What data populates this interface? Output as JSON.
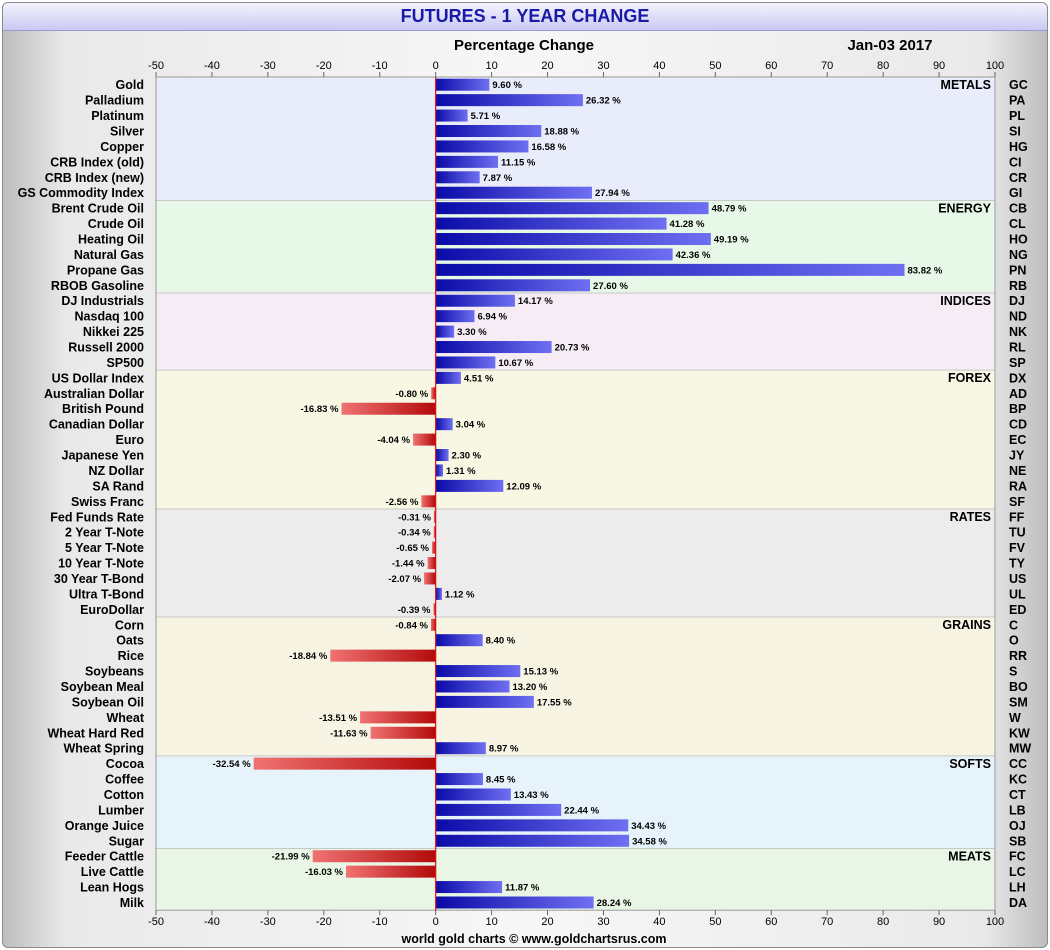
{
  "chart_data": {
    "type": "bar",
    "orientation": "horizontal",
    "title": "FUTURES - 1 YEAR CHANGE",
    "subtitle": "Percentage Change",
    "date": "Jan-03  2017",
    "footer": "world gold charts © www.goldchartsrus.com",
    "xlim": [
      -50,
      100
    ],
    "xticks": [
      -50,
      -40,
      -30,
      -20,
      -10,
      0,
      10,
      20,
      30,
      40,
      50,
      60,
      70,
      80,
      90,
      100
    ],
    "value_suffix": " %",
    "colors": {
      "positive": "#1515c8",
      "negative": "#c81515"
    },
    "groups": [
      {
        "name": "METALS",
        "color": "#e9ecfb",
        "items": [
          {
            "label": "Gold",
            "code": "GC",
            "value": 9.6
          },
          {
            "label": "Palladium",
            "code": "PA",
            "value": 26.32
          },
          {
            "label": "Platinum",
            "code": "PL",
            "value": 5.71
          },
          {
            "label": "Silver",
            "code": "SI",
            "value": 18.88
          },
          {
            "label": "Copper",
            "code": "HG",
            "value": 16.58
          },
          {
            "label": "CRB Index (old)",
            "code": "CI",
            "value": 11.15
          },
          {
            "label": "CRB Index (new)",
            "code": "CR",
            "value": 7.87
          },
          {
            "label": "GS Commodity Index",
            "code": "GI",
            "value": 27.94
          }
        ]
      },
      {
        "name": "ENERGY",
        "color": "#e7f8e8",
        "items": [
          {
            "label": "Brent Crude Oil",
            "code": "CB",
            "value": 48.79
          },
          {
            "label": "Crude Oil",
            "code": "CL",
            "value": 41.28
          },
          {
            "label": "Heating Oil",
            "code": "HO",
            "value": 49.19
          },
          {
            "label": "Natural Gas",
            "code": "NG",
            "value": 42.36
          },
          {
            "label": "Propane Gas",
            "code": "PN",
            "value": 83.82
          },
          {
            "label": "RBOB Gasoline",
            "code": "RB",
            "value": 27.6
          }
        ]
      },
      {
        "name": "INDICES",
        "color": "#f6ecf6",
        "items": [
          {
            "label": "DJ Industrials",
            "code": "DJ",
            "value": 14.17
          },
          {
            "label": "Nasdaq 100",
            "code": "ND",
            "value": 6.94
          },
          {
            "label": "Nikkei 225",
            "code": "NK",
            "value": 3.3
          },
          {
            "label": "Russell 2000",
            "code": "RL",
            "value": 20.73
          },
          {
            "label": "SP500",
            "code": "SP",
            "value": 10.67
          }
        ]
      },
      {
        "name": "FOREX",
        "color": "#f7f7e3",
        "items": [
          {
            "label": "US Dollar Index",
            "code": "DX",
            "value": 4.51
          },
          {
            "label": "Australian Dollar",
            "code": "AD",
            "value": -0.8
          },
          {
            "label": "British Pound",
            "code": "BP",
            "value": -16.83
          },
          {
            "label": "Canadian Dollar",
            "code": "CD",
            "value": 3.04
          },
          {
            "label": "Euro",
            "code": "EC",
            "value": -4.04
          },
          {
            "label": "Japanese Yen",
            "code": "JY",
            "value": 2.3
          },
          {
            "label": "NZ Dollar",
            "code": "NE",
            "value": 1.31
          },
          {
            "label": "SA Rand",
            "code": "RA",
            "value": 12.09
          },
          {
            "label": "Swiss Franc",
            "code": "SF",
            "value": -2.56
          }
        ]
      },
      {
        "name": "RATES",
        "color": "#ececec",
        "items": [
          {
            "label": "Fed Funds Rate",
            "code": "FF",
            "value": -0.31
          },
          {
            "label": "2 Year T-Note",
            "code": "TU",
            "value": -0.34
          },
          {
            "label": "5 Year T-Note",
            "code": "FV",
            "value": -0.65
          },
          {
            "label": "10 Year T-Note",
            "code": "TY",
            "value": -1.44
          },
          {
            "label": "30 Year T-Bond",
            "code": "US",
            "value": -2.07
          },
          {
            "label": "Ultra T-Bond",
            "code": "UL",
            "value": 1.12
          },
          {
            "label": "EuroDollar",
            "code": "ED",
            "value": -0.39
          }
        ]
      },
      {
        "name": "GRAINS",
        "color": "#f7f4e3",
        "items": [
          {
            "label": "Corn",
            "code": "C",
            "value": -0.84
          },
          {
            "label": "Oats",
            "code": "O",
            "value": 8.4
          },
          {
            "label": "Rice",
            "code": "RR",
            "value": -18.84
          },
          {
            "label": "Soybeans",
            "code": "S",
            "value": 15.13
          },
          {
            "label": "Soybean Meal",
            "code": "BO",
            "value": 13.2
          },
          {
            "label": "Soybean Oil",
            "code": "SM",
            "value": 17.55
          },
          {
            "label": "Wheat",
            "code": "W",
            "value": -13.51
          },
          {
            "label": "Wheat Hard Red",
            "code": "KW",
            "value": -11.63
          },
          {
            "label": "Wheat Spring",
            "code": "MW",
            "value": 8.97
          }
        ]
      },
      {
        "name": "SOFTS",
        "color": "#e6f3fa",
        "items": [
          {
            "label": "Cocoa",
            "code": "CC",
            "value": -32.54
          },
          {
            "label": "Coffee",
            "code": "KC",
            "value": 8.45
          },
          {
            "label": "Cotton",
            "code": "CT",
            "value": 13.43
          },
          {
            "label": "Lumber",
            "code": "LB",
            "value": 22.44
          },
          {
            "label": "Orange Juice",
            "code": "OJ",
            "value": 34.43
          },
          {
            "label": "Sugar",
            "code": "SB",
            "value": 34.58
          }
        ]
      },
      {
        "name": "MEATS",
        "color": "#e9f5e5",
        "items": [
          {
            "label": "Feeder Cattle",
            "code": "FC",
            "value": -21.99
          },
          {
            "label": "Live Cattle",
            "code": "LC",
            "value": -16.03
          },
          {
            "label": "Lean Hogs",
            "code": "LH",
            "value": 11.87
          },
          {
            "label": "Milk",
            "code": "DA",
            "value": 28.24
          }
        ]
      }
    ]
  }
}
